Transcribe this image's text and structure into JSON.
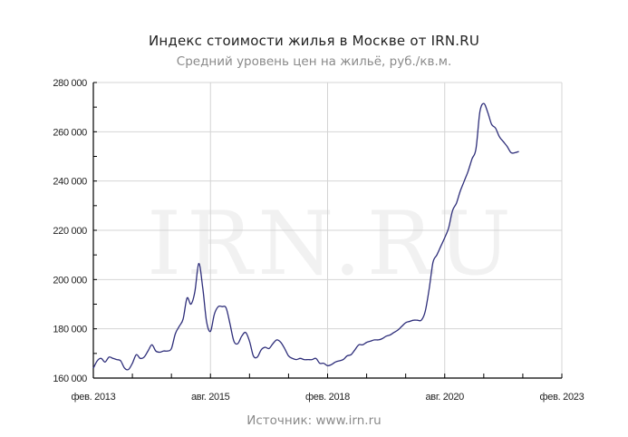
{
  "header": {
    "title": "Индекс стоимости жилья в Москве от IRN.RU",
    "subtitle": "Средний уровень цен на жильё, руб./кв.м."
  },
  "footer": {
    "source": "Источник: www.irn.ru"
  },
  "watermark": "IRN.RU",
  "colors": {
    "line": "#2e2e7a",
    "grid": "#d4d4d4",
    "axis": "#000000",
    "watermark": "#f1f1f1"
  },
  "chart_data": {
    "type": "line",
    "title": "Индекс стоимости жилья в Москве от IRN.RU",
    "subtitle": "Средний уровень цен на жильё, руб./кв.м.",
    "xlabel": "",
    "ylabel": "руб./кв.м.",
    "ylim": [
      160000,
      280000
    ],
    "yticks": [
      160000,
      180000,
      200000,
      220000,
      240000,
      260000,
      280000
    ],
    "ytick_labels": [
      "160 000",
      "180 000",
      "200 000",
      "220 000",
      "240 000",
      "260 000",
      "280 000"
    ],
    "xtick_labels": [
      "фев. 2013",
      "авг. 2015",
      "фев. 2018",
      "авг. 2020",
      "фев. 2023"
    ],
    "xtick_months": [
      0,
      30,
      60,
      90,
      120
    ],
    "minor_tick_interval_months": 10,
    "grid": true,
    "legend": null,
    "x_unit": "months since фев. 2013",
    "series": [
      {
        "name": "Средний уровень цен на жильё",
        "points": [
          [
            0,
            164000
          ],
          [
            1,
            167000
          ],
          [
            2,
            168000
          ],
          [
            3,
            166500
          ],
          [
            4,
            168500
          ],
          [
            5,
            168000
          ],
          [
            6,
            167500
          ],
          [
            7,
            167000
          ],
          [
            8,
            164000
          ],
          [
            9,
            163500
          ],
          [
            10,
            166000
          ],
          [
            11,
            169500
          ],
          [
            12,
            168000
          ],
          [
            13,
            168500
          ],
          [
            14,
            171000
          ],
          [
            15,
            173500
          ],
          [
            16,
            171000
          ],
          [
            17,
            170500
          ],
          [
            18,
            171000
          ],
          [
            19,
            171000
          ],
          [
            20,
            172000
          ],
          [
            21,
            178000
          ],
          [
            22,
            181000
          ],
          [
            23,
            184000
          ],
          [
            24,
            192500
          ],
          [
            25,
            190000
          ],
          [
            26,
            195000
          ],
          [
            27,
            206500
          ],
          [
            28,
            197000
          ],
          [
            29,
            183000
          ],
          [
            30,
            179000
          ],
          [
            31,
            186000
          ],
          [
            32,
            189000
          ],
          [
            33,
            189000
          ],
          [
            34,
            188500
          ],
          [
            35,
            182000
          ],
          [
            36,
            175000
          ],
          [
            37,
            174000
          ],
          [
            38,
            177000
          ],
          [
            39,
            178500
          ],
          [
            40,
            175000
          ],
          [
            41,
            169000
          ],
          [
            42,
            168500
          ],
          [
            43,
            171500
          ],
          [
            44,
            172500
          ],
          [
            45,
            172000
          ],
          [
            46,
            174000
          ],
          [
            47,
            175500
          ],
          [
            48,
            174500
          ],
          [
            49,
            172000
          ],
          [
            50,
            169000
          ],
          [
            51,
            168000
          ],
          [
            52,
            167500
          ],
          [
            53,
            168000
          ],
          [
            54,
            167500
          ],
          [
            55,
            167500
          ],
          [
            56,
            167500
          ],
          [
            57,
            168000
          ],
          [
            58,
            166000
          ],
          [
            59,
            166000
          ],
          [
            60,
            165000
          ],
          [
            61,
            165500
          ],
          [
            62,
            166500
          ],
          [
            63,
            167000
          ],
          [
            64,
            167500
          ],
          [
            65,
            169000
          ],
          [
            66,
            169500
          ],
          [
            67,
            171500
          ],
          [
            68,
            173500
          ],
          [
            69,
            173500
          ],
          [
            70,
            174500
          ],
          [
            71,
            175000
          ],
          [
            72,
            175500
          ],
          [
            73,
            175500
          ],
          [
            74,
            176000
          ],
          [
            75,
            177000
          ],
          [
            76,
            177500
          ],
          [
            77,
            178500
          ],
          [
            78,
            179500
          ],
          [
            79,
            181000
          ],
          [
            80,
            182500
          ],
          [
            81,
            183000
          ],
          [
            82,
            183500
          ],
          [
            83,
            183500
          ],
          [
            84,
            183500
          ],
          [
            85,
            187000
          ],
          [
            86,
            196000
          ],
          [
            87,
            207000
          ],
          [
            88,
            210000
          ],
          [
            89,
            213500
          ],
          [
            90,
            217000
          ],
          [
            91,
            221000
          ],
          [
            92,
            228000
          ],
          [
            93,
            231000
          ],
          [
            94,
            236000
          ],
          [
            95,
            240000
          ],
          [
            96,
            244000
          ],
          [
            97,
            249000
          ],
          [
            98,
            253000
          ],
          [
            99,
            268000
          ],
          [
            100,
            271500
          ],
          [
            101,
            268000
          ],
          [
            102,
            263000
          ],
          [
            103,
            261500
          ],
          [
            104,
            258000
          ],
          [
            105,
            256000
          ],
          [
            106,
            254000
          ],
          [
            107,
            251500
          ],
          [
            108,
            251500
          ],
          [
            109,
            252000
          ]
        ]
      }
    ]
  }
}
